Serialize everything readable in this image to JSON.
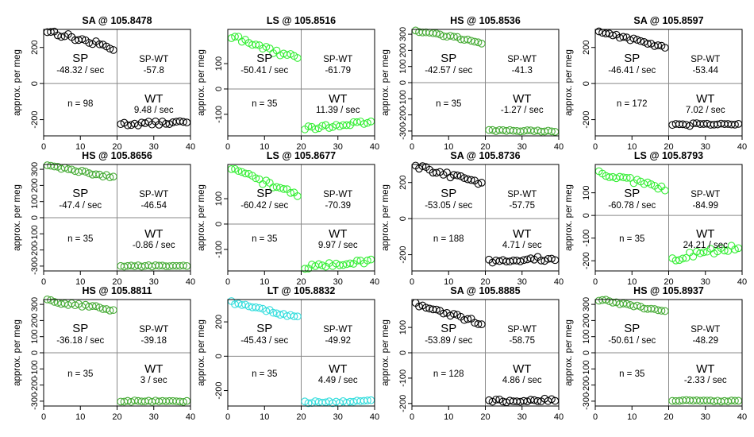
{
  "figure": {
    "ylabel": "approx. per meg",
    "sp_label": "SP",
    "wt_label": "WT",
    "spwt_label": "SP-WT"
  },
  "chart_data": [
    {
      "type": "scatter",
      "title": "SA @ 105.8478",
      "ylabel": "approx. per meg",
      "color": "#000000",
      "xlim": [
        0,
        40
      ],
      "ylim": [
        -290,
        300
      ],
      "yticks": [
        -200,
        0,
        200
      ],
      "xticks": [
        0,
        10,
        20,
        30,
        40
      ],
      "sp": {
        "start": 292,
        "end": 195,
        "noise": 14
      },
      "wt": {
        "start": -225,
        "end": -215,
        "noise": 10
      },
      "sp_rate": "-48.32 / sec",
      "diff": "-57.8",
      "n": "n = 98",
      "wt_rate": "9.48 / sec"
    },
    {
      "type": "scatter",
      "title": "LS @ 105.8516",
      "ylabel": "approx. per meg",
      "color": "#33ee33",
      "xlim": [
        0,
        40
      ],
      "ylim": [
        -185,
        235
      ],
      "yticks": [
        -100,
        0,
        100
      ],
      "xticks": [
        0,
        10,
        20,
        30,
        40
      ],
      "sp": {
        "start": 205,
        "end": 120,
        "noise": 12
      },
      "wt": {
        "start": -155,
        "end": -132,
        "noise": 8
      },
      "sp_rate": "-50.41 / sec",
      "diff": "-61.79",
      "n": "n = 35",
      "wt_rate": "11.39 / sec"
    },
    {
      "type": "scatter",
      "title": "HS @ 105.8536",
      "ylabel": "approx. per meg",
      "color": "#44aa33",
      "xlim": [
        0,
        40
      ],
      "ylim": [
        -330,
        330
      ],
      "yticks": [
        -300,
        -200,
        -100,
        0,
        100,
        200,
        300
      ],
      "xticks": [
        0,
        10,
        20,
        30,
        40
      ],
      "sp": {
        "start": 325,
        "end": 250,
        "noise": 8
      },
      "wt": {
        "start": -298,
        "end": -300,
        "noise": 5
      },
      "sp_rate": "-42.57 / sec",
      "diff": "-41.3",
      "n": "n = 35",
      "wt_rate": "-1.27 / sec"
    },
    {
      "type": "scatter",
      "title": "SA @ 105.8597",
      "ylabel": "approx. per meg",
      "color": "#000000",
      "xlim": [
        0,
        40
      ],
      "ylim": [
        -290,
        300
      ],
      "yticks": [
        -200,
        0,
        200
      ],
      "xticks": [
        0,
        10,
        20,
        30,
        40
      ],
      "sp": {
        "start": 290,
        "end": 200,
        "noise": 10
      },
      "wt": {
        "start": -232,
        "end": -220,
        "noise": 8
      },
      "sp_rate": "-46.41 / sec",
      "diff": "-53.44",
      "n": "n = 172",
      "wt_rate": "7.02 / sec"
    },
    {
      "type": "scatter",
      "title": "HS @ 105.8656",
      "ylabel": "approx. per meg",
      "color": "#44aa33",
      "xlim": [
        0,
        40
      ],
      "ylim": [
        -330,
        330
      ],
      "yticks": [
        -300,
        -200,
        -100,
        0,
        100,
        200,
        300
      ],
      "xticks": [
        0,
        10,
        20,
        30,
        40
      ],
      "sp": {
        "start": 325,
        "end": 250,
        "noise": 7
      },
      "wt": {
        "start": -298,
        "end": -300,
        "noise": 5
      },
      "sp_rate": "-47.4 / sec",
      "diff": "-46.54",
      "n": "n = 35",
      "wt_rate": "-0.86 / sec"
    },
    {
      "type": "scatter",
      "title": "LS @ 105.8677",
      "ylabel": "approx. per meg",
      "color": "#33ee33",
      "xlim": [
        0,
        40
      ],
      "ylim": [
        -185,
        235
      ],
      "yticks": [
        -100,
        0,
        100
      ],
      "xticks": [
        0,
        10,
        20,
        30,
        40
      ],
      "sp": {
        "start": 215,
        "end": 115,
        "noise": 10
      },
      "wt": {
        "start": -170,
        "end": -145,
        "noise": 8
      },
      "sp_rate": "-60.42 / sec",
      "diff": "-70.39",
      "n": "n = 35",
      "wt_rate": "9.97 / sec"
    },
    {
      "type": "scatter",
      "title": "SA @ 105.8736",
      "ylabel": "approx. per meg",
      "color": "#000000",
      "xlim": [
        0,
        40
      ],
      "ylim": [
        -290,
        300
      ],
      "yticks": [
        -200,
        0,
        200
      ],
      "xticks": [
        0,
        10,
        20,
        30,
        40
      ],
      "sp": {
        "start": 290,
        "end": 195,
        "noise": 12
      },
      "wt": {
        "start": -235,
        "end": -220,
        "noise": 12
      },
      "sp_rate": "-53.05 / sec",
      "diff": "-57.75",
      "n": "n = 188",
      "wt_rate": "4.71 / sec"
    },
    {
      "type": "scatter",
      "title": "LS @ 105.8793",
      "ylabel": "approx. per meg",
      "color": "#33ee33",
      "xlim": [
        0,
        40
      ],
      "ylim": [
        -245,
        225
      ],
      "yticks": [
        -200,
        -100,
        0,
        100
      ],
      "xticks": [
        0,
        10,
        20,
        30,
        40
      ],
      "sp": {
        "start": 190,
        "end": 120,
        "noise": 12
      },
      "wt": {
        "start": -190,
        "end": -140,
        "noise": 16
      },
      "sp_rate": "-60.78 / sec",
      "diff": "-84.99",
      "n": "n = 35",
      "wt_rate": "24.21 / sec"
    },
    {
      "type": "scatter",
      "title": "HS @ 105.8811",
      "ylabel": "approx. per meg",
      "color": "#44aa33",
      "xlim": [
        0,
        40
      ],
      "ylim": [
        -330,
        330
      ],
      "yticks": [
        -300,
        -200,
        -100,
        0,
        100,
        200,
        300
      ],
      "xticks": [
        0,
        10,
        20,
        30,
        40
      ],
      "sp": {
        "start": 325,
        "end": 265,
        "noise": 10
      },
      "wt": {
        "start": -300,
        "end": -300,
        "noise": 5
      },
      "sp_rate": "-36.18 / sec",
      "diff": "-39.18",
      "n": "n = 35",
      "wt_rate": "3 / sec"
    },
    {
      "type": "scatter",
      "title": "LT @ 105.8832",
      "ylabel": "approx. per meg",
      "color": "#33dddd",
      "xlim": [
        0,
        40
      ],
      "ylim": [
        -290,
        330
      ],
      "yticks": [
        -200,
        0,
        200
      ],
      "xticks": [
        0,
        10,
        20,
        30,
        40
      ],
      "sp": {
        "start": 315,
        "end": 225,
        "noise": 8
      },
      "wt": {
        "start": -270,
        "end": -262,
        "noise": 7
      },
      "sp_rate": "-45.43 / sec",
      "diff": "-49.92",
      "n": "n = 35",
      "wt_rate": "4.49 / sec"
    },
    {
      "type": "scatter",
      "title": "SA @ 105.8885",
      "ylabel": "approx. per meg",
      "color": "#000000",
      "xlim": [
        0,
        40
      ],
      "ylim": [
        -210,
        210
      ],
      "yticks": [
        -200,
        -100,
        0,
        100
      ],
      "xticks": [
        0,
        10,
        20,
        30,
        40
      ],
      "sp": {
        "start": 190,
        "end": 115,
        "noise": 8
      },
      "wt": {
        "start": -190,
        "end": -185,
        "noise": 7
      },
      "sp_rate": "-53.89 / sec",
      "diff": "-58.75",
      "n": "n = 128",
      "wt_rate": "4.86 / sec"
    },
    {
      "type": "scatter",
      "title": "HS @ 105.8937",
      "ylabel": "approx. per meg",
      "color": "#44aa33",
      "xlim": [
        0,
        40
      ],
      "ylim": [
        -330,
        330
      ],
      "yticks": [
        -300,
        -200,
        -100,
        0,
        100,
        200,
        300
      ],
      "xticks": [
        0,
        10,
        20,
        30,
        40
      ],
      "sp": {
        "start": 330,
        "end": 255,
        "noise": 7
      },
      "wt": {
        "start": -297,
        "end": -297,
        "noise": 5
      },
      "sp_rate": "-50.61 / sec",
      "diff": "-48.29",
      "n": "n = 35",
      "wt_rate": "-2.33 / sec"
    }
  ]
}
